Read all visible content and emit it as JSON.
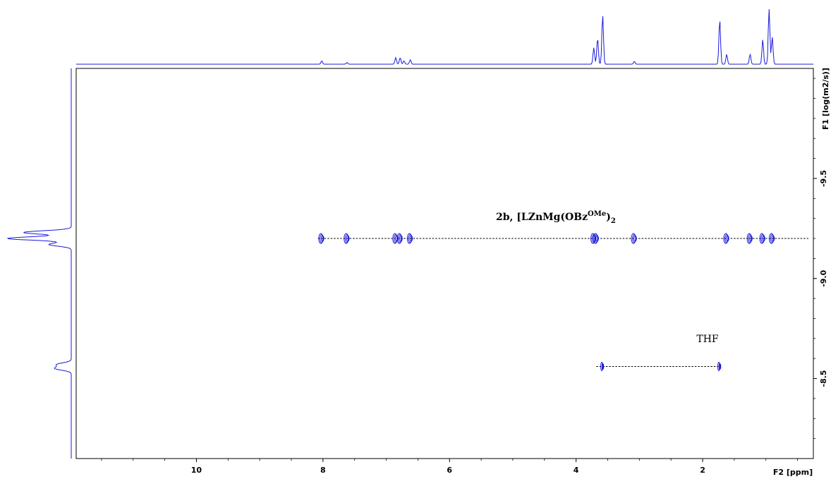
{
  "chart_data": {
    "type": "scatter",
    "subtype": "2D DOSY NMR spectrum",
    "x_axis": {
      "label": "F2 [ppm]",
      "range": [
        11.9,
        0.25
      ],
      "reversed": true,
      "ticks": [
        10,
        8,
        6,
        4,
        2
      ],
      "tick_labels": [
        "10",
        "8",
        "6",
        "4",
        "2"
      ]
    },
    "y_axis": {
      "label": "F1 [log(m2/s)]",
      "range": [
        -10.05,
        -8.1
      ],
      "reversed": true,
      "ticks": [
        -9.5,
        -9.0,
        -8.5
      ],
      "tick_labels": [
        "-9.5",
        "-9.0",
        "-8.5"
      ]
    },
    "grid": false,
    "legend": "none",
    "color": "#1a1adb",
    "series": [
      {
        "name": "2b, [LZnMg(OBz^OMe)2]",
        "label_main": "2b, [LZnMg(OBz",
        "label_sup": "OMe",
        "label_end": ")",
        "label_sub": "2",
        "log_D": -9.2,
        "x_line": [
          8.08,
          0.33
        ],
        "points": [
          {
            "x": 8.02,
            "y": -9.2
          },
          {
            "x": 7.62,
            "y": -9.2
          },
          {
            "x": 6.85,
            "y": -9.2
          },
          {
            "x": 6.78,
            "y": -9.2
          },
          {
            "x": 6.62,
            "y": -9.2
          },
          {
            "x": 3.72,
            "y": -9.2
          },
          {
            "x": 3.68,
            "y": -9.2
          },
          {
            "x": 3.08,
            "y": -9.2
          },
          {
            "x": 1.62,
            "y": -9.2
          },
          {
            "x": 1.25,
            "y": -9.2
          },
          {
            "x": 1.05,
            "y": -9.2
          },
          {
            "x": 0.9,
            "y": -9.2
          }
        ]
      },
      {
        "name": "THF",
        "label_main": "THF",
        "log_D": -8.56,
        "x_line": [
          3.68,
          1.73
        ],
        "points": [
          {
            "x": 3.58,
            "y": -8.56
          },
          {
            "x": 1.73,
            "y": -8.56
          }
        ]
      }
    ],
    "f2_projection": [
      {
        "x": 8.02,
        "h": 0.06
      },
      {
        "x": 7.62,
        "h": 0.03
      },
      {
        "x": 6.85,
        "h": 0.12
      },
      {
        "x": 6.78,
        "h": 0.12
      },
      {
        "x": 6.72,
        "h": 0.06
      },
      {
        "x": 6.62,
        "h": 0.08
      },
      {
        "x": 3.72,
        "h": 0.3
      },
      {
        "x": 3.66,
        "h": 0.48
      },
      {
        "x": 3.58,
        "h": 0.9
      },
      {
        "x": 3.08,
        "h": 0.05
      },
      {
        "x": 1.73,
        "h": 0.82
      },
      {
        "x": 1.62,
        "h": 0.18
      },
      {
        "x": 1.25,
        "h": 0.18
      },
      {
        "x": 1.05,
        "h": 0.45
      },
      {
        "x": 0.95,
        "h": 1.0
      },
      {
        "x": 0.9,
        "h": 0.5
      }
    ],
    "f1_projection": [
      {
        "y": -9.23,
        "h": 0.75
      },
      {
        "y": -9.2,
        "h": 1.0
      },
      {
        "y": -9.17,
        "h": 0.35
      },
      {
        "y": -8.57,
        "h": 0.22
      },
      {
        "y": -8.55,
        "h": 0.25
      }
    ]
  }
}
